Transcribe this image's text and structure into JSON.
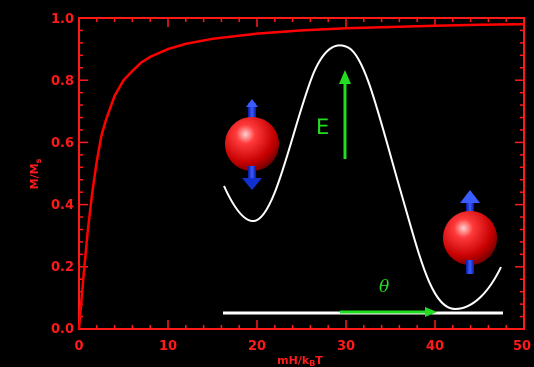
{
  "chart_data": {
    "type": "line",
    "xlabel": "mH/k",
    "xlabel_sub": "B",
    "xlabel_tail": "T",
    "ylabel": "M/M",
    "ylabel_sub": "s",
    "xlim": [
      0,
      50
    ],
    "ylim": [
      0,
      1.0
    ],
    "xticks": [
      "0",
      "10",
      "20",
      "30",
      "40",
      "50"
    ],
    "yticks": [
      "0.0",
      "0.2",
      "0.4",
      "0.6",
      "0.8",
      "1.0"
    ],
    "grid": false,
    "series": [
      {
        "color": "#ff0000",
        "x": [
          0,
          0.5,
          1,
          1.5,
          2,
          2.5,
          3,
          4,
          5,
          6,
          7,
          8,
          10,
          12,
          15,
          20,
          25,
          30,
          35,
          40,
          45,
          50
        ],
        "y": [
          0,
          0.17,
          0.32,
          0.44,
          0.54,
          0.62,
          0.67,
          0.75,
          0.8,
          0.83,
          0.857,
          0.875,
          0.9,
          0.917,
          0.933,
          0.95,
          0.96,
          0.967,
          0.971,
          0.975,
          0.978,
          0.98
        ]
      }
    ],
    "inset": {
      "energy_label": "E",
      "angle_label": "θ",
      "colors": {
        "well": "#ffffff",
        "arrow": "#22dd22",
        "spin": "#0a22dd",
        "sphere": "#e81010"
      }
    }
  }
}
